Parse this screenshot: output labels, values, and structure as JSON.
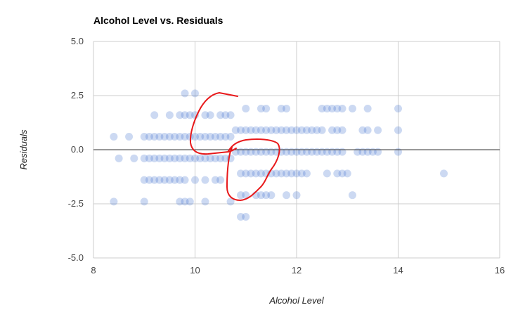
{
  "chart_data": {
    "type": "scatter",
    "title": "Alcohol Level vs. Residuals",
    "xlabel": "Alcohol Level",
    "ylabel": "Residuals",
    "xlim": [
      8,
      16
    ],
    "ylim": [
      -5,
      5
    ],
    "x_ticks": [
      "8",
      "10",
      "12",
      "14",
      "16"
    ],
    "y_ticks": [
      "5.0",
      "2.5",
      "0.0",
      "-2.5",
      "-5.0"
    ],
    "y_tick_values": [
      5,
      2.5,
      0,
      -2.5,
      -5
    ],
    "x_tick_values": [
      8,
      10,
      12,
      14,
      16
    ],
    "grid": true,
    "legend": "none",
    "colors": {
      "point": "#3366cc",
      "annotation": "#e8191b"
    },
    "points": [
      [
        8.4,
        0.6
      ],
      [
        8.7,
        0.6
      ],
      [
        8.5,
        -0.4
      ],
      [
        8.8,
        -0.4
      ],
      [
        8.4,
        -2.4
      ],
      [
        9.0,
        0.6
      ],
      [
        9.1,
        0.6
      ],
      [
        9.2,
        0.6
      ],
      [
        9.3,
        0.6
      ],
      [
        9.4,
        0.6
      ],
      [
        9.5,
        0.6
      ],
      [
        9.6,
        0.6
      ],
      [
        9.7,
        0.6
      ],
      [
        9.8,
        0.6
      ],
      [
        9.9,
        0.6
      ],
      [
        10.0,
        0.6
      ],
      [
        10.1,
        0.6
      ],
      [
        10.2,
        0.6
      ],
      [
        10.3,
        0.6
      ],
      [
        10.4,
        0.6
      ],
      [
        10.5,
        0.6
      ],
      [
        10.6,
        0.6
      ],
      [
        10.7,
        0.6
      ],
      [
        9.0,
        -0.4
      ],
      [
        9.1,
        -0.4
      ],
      [
        9.2,
        -0.4
      ],
      [
        9.3,
        -0.4
      ],
      [
        9.4,
        -0.4
      ],
      [
        9.5,
        -0.4
      ],
      [
        9.6,
        -0.4
      ],
      [
        9.7,
        -0.4
      ],
      [
        9.8,
        -0.4
      ],
      [
        9.9,
        -0.4
      ],
      [
        10.0,
        -0.4
      ],
      [
        10.1,
        -0.4
      ],
      [
        10.2,
        -0.4
      ],
      [
        10.3,
        -0.4
      ],
      [
        10.4,
        -0.4
      ],
      [
        10.5,
        -0.4
      ],
      [
        10.6,
        -0.4
      ],
      [
        10.7,
        -0.4
      ],
      [
        9.0,
        -1.4
      ],
      [
        9.1,
        -1.4
      ],
      [
        9.2,
        -1.4
      ],
      [
        9.3,
        -1.4
      ],
      [
        9.4,
        -1.4
      ],
      [
        9.5,
        -1.4
      ],
      [
        9.6,
        -1.4
      ],
      [
        9.7,
        -1.4
      ],
      [
        9.8,
        -1.4
      ],
      [
        10.0,
        -1.4
      ],
      [
        10.2,
        -1.4
      ],
      [
        10.4,
        -1.4
      ],
      [
        10.5,
        -1.4
      ],
      [
        9.2,
        1.6
      ],
      [
        9.5,
        1.6
      ],
      [
        9.7,
        1.6
      ],
      [
        9.8,
        1.6
      ],
      [
        9.9,
        1.6
      ],
      [
        10.0,
        1.6
      ],
      [
        10.2,
        1.6
      ],
      [
        10.3,
        1.6
      ],
      [
        10.5,
        1.6
      ],
      [
        10.6,
        1.6
      ],
      [
        10.7,
        1.6
      ],
      [
        9.0,
        -2.4
      ],
      [
        9.7,
        -2.4
      ],
      [
        9.8,
        -2.4
      ],
      [
        9.9,
        -2.4
      ],
      [
        10.2,
        -2.4
      ],
      [
        10.7,
        -2.4
      ],
      [
        9.8,
        2.6
      ],
      [
        10.0,
        2.6
      ],
      [
        10.8,
        0.9
      ],
      [
        10.9,
        0.9
      ],
      [
        11.0,
        0.9
      ],
      [
        11.1,
        0.9
      ],
      [
        11.2,
        0.9
      ],
      [
        11.3,
        0.9
      ],
      [
        11.4,
        0.9
      ],
      [
        11.5,
        0.9
      ],
      [
        11.6,
        0.9
      ],
      [
        11.7,
        0.9
      ],
      [
        11.8,
        0.9
      ],
      [
        11.9,
        0.9
      ],
      [
        12.0,
        0.9
      ],
      [
        12.1,
        0.9
      ],
      [
        12.2,
        0.9
      ],
      [
        12.3,
        0.9
      ],
      [
        12.4,
        0.9
      ],
      [
        12.5,
        0.9
      ],
      [
        12.7,
        0.9
      ],
      [
        12.8,
        0.9
      ],
      [
        12.9,
        0.9
      ],
      [
        13.3,
        0.9
      ],
      [
        13.4,
        0.9
      ],
      [
        13.6,
        0.9
      ],
      [
        14.0,
        0.9
      ],
      [
        10.8,
        -0.1
      ],
      [
        10.9,
        -0.1
      ],
      [
        11.0,
        -0.1
      ],
      [
        11.1,
        -0.1
      ],
      [
        11.2,
        -0.1
      ],
      [
        11.3,
        -0.1
      ],
      [
        11.4,
        -0.1
      ],
      [
        11.5,
        -0.1
      ],
      [
        11.6,
        -0.1
      ],
      [
        11.7,
        -0.1
      ],
      [
        11.8,
        -0.1
      ],
      [
        11.9,
        -0.1
      ],
      [
        12.0,
        -0.1
      ],
      [
        12.1,
        -0.1
      ],
      [
        12.2,
        -0.1
      ],
      [
        12.3,
        -0.1
      ],
      [
        12.4,
        -0.1
      ],
      [
        12.5,
        -0.1
      ],
      [
        12.6,
        -0.1
      ],
      [
        12.7,
        -0.1
      ],
      [
        12.8,
        -0.1
      ],
      [
        12.9,
        -0.1
      ],
      [
        13.2,
        -0.1
      ],
      [
        13.3,
        -0.1
      ],
      [
        13.4,
        -0.1
      ],
      [
        13.5,
        -0.1
      ],
      [
        13.6,
        -0.1
      ],
      [
        14.0,
        -0.1
      ],
      [
        10.9,
        -1.1
      ],
      [
        11.0,
        -1.1
      ],
      [
        11.1,
        -1.1
      ],
      [
        11.2,
        -1.1
      ],
      [
        11.3,
        -1.1
      ],
      [
        11.4,
        -1.1
      ],
      [
        11.5,
        -1.1
      ],
      [
        11.6,
        -1.1
      ],
      [
        11.7,
        -1.1
      ],
      [
        11.8,
        -1.1
      ],
      [
        11.9,
        -1.1
      ],
      [
        12.0,
        -1.1
      ],
      [
        12.1,
        -1.1
      ],
      [
        12.2,
        -1.1
      ],
      [
        12.6,
        -1.1
      ],
      [
        12.8,
        -1.1
      ],
      [
        12.9,
        -1.1
      ],
      [
        13.0,
        -1.1
      ],
      [
        14.9,
        -1.1
      ],
      [
        11.0,
        1.9
      ],
      [
        11.3,
        1.9
      ],
      [
        11.4,
        1.9
      ],
      [
        11.7,
        1.9
      ],
      [
        11.8,
        1.9
      ],
      [
        12.5,
        1.9
      ],
      [
        12.6,
        1.9
      ],
      [
        12.7,
        1.9
      ],
      [
        12.8,
        1.9
      ],
      [
        12.9,
        1.9
      ],
      [
        13.1,
        1.9
      ],
      [
        13.4,
        1.9
      ],
      [
        14.0,
        1.9
      ],
      [
        10.9,
        -2.1
      ],
      [
        11.0,
        -2.1
      ],
      [
        11.2,
        -2.1
      ],
      [
        11.3,
        -2.1
      ],
      [
        11.4,
        -2.1
      ],
      [
        11.5,
        -2.1
      ],
      [
        11.8,
        -2.1
      ],
      [
        12.0,
        -2.1
      ],
      [
        13.1,
        -2.1
      ],
      [
        10.9,
        -3.1
      ],
      [
        11.0,
        -3.1
      ]
    ],
    "annotations": [
      {
        "type": "freehand-loop",
        "color": "#e8191b",
        "around_x": [
          9.9,
          10.7
        ],
        "around_y": [
          -0.2,
          2.6
        ]
      },
      {
        "type": "freehand-loop",
        "color": "#e8191b",
        "around_x": [
          10.6,
          11.7
        ],
        "around_y": [
          -2.4,
          0.5
        ]
      }
    ]
  }
}
